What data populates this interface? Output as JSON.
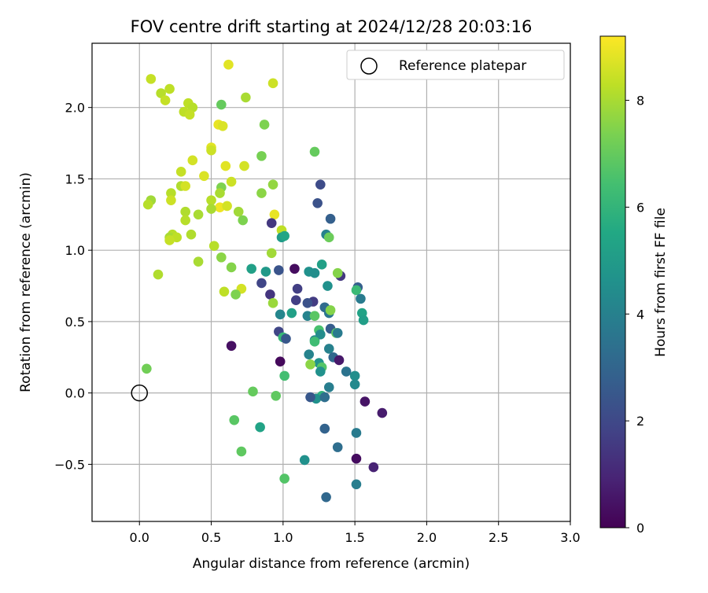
{
  "chart_data": {
    "type": "scatter",
    "title": "FOV centre drift starting at 2024/12/28 20:03:16",
    "xlabel": "Angular distance from reference (arcmin)",
    "ylabel": "Rotation from reference (arcmin)",
    "xlim": [
      -0.33,
      3.0
    ],
    "ylim": [
      -0.9,
      2.45
    ],
    "xticks": [
      0.0,
      0.5,
      1.0,
      1.5,
      2.0,
      2.5,
      3.0
    ],
    "xtick_labels": [
      "0.0",
      "0.5",
      "1.0",
      "1.5",
      "2.0",
      "2.5",
      "3.0"
    ],
    "yticks": [
      -0.5,
      0.0,
      0.5,
      1.0,
      1.5,
      2.0
    ],
    "ytick_labels": [
      "−0.5",
      "0.0",
      "0.5",
      "1.0",
      "1.5",
      "2.0"
    ],
    "grid": true,
    "legend": {
      "placement": "top-right",
      "entries": [
        "Reference platepar"
      ]
    },
    "colormap": "viridis",
    "colorbar": {
      "label": "Hours from first FF file",
      "range": [
        0,
        9.2
      ],
      "ticks": [
        0,
        2,
        4,
        6,
        8
      ],
      "tick_labels": [
        "0",
        "2",
        "4",
        "6",
        "8"
      ]
    },
    "reference_point": {
      "x": 0.0,
      "y": 0.0
    },
    "points": [
      {
        "x": 0.08,
        "y": 2.2,
        "hours": 8.4
      },
      {
        "x": 0.62,
        "y": 2.3,
        "hours": 8.8
      },
      {
        "x": 0.15,
        "y": 2.1,
        "hours": 8.2
      },
      {
        "x": 0.21,
        "y": 2.13,
        "hours": 8.3
      },
      {
        "x": 0.18,
        "y": 2.05,
        "hours": 8.4
      },
      {
        "x": 0.93,
        "y": 2.17,
        "hours": 8.5
      },
      {
        "x": 0.74,
        "y": 2.07,
        "hours": 8.0
      },
      {
        "x": 0.34,
        "y": 2.03,
        "hours": 8.3
      },
      {
        "x": 0.37,
        "y": 2.0,
        "hours": 8.2
      },
      {
        "x": 0.31,
        "y": 1.97,
        "hours": 8.3
      },
      {
        "x": 0.35,
        "y": 1.95,
        "hours": 8.4
      },
      {
        "x": 0.57,
        "y": 2.02,
        "hours": 7.0
      },
      {
        "x": 0.55,
        "y": 1.88,
        "hours": 8.9
      },
      {
        "x": 0.58,
        "y": 1.87,
        "hours": 8.7
      },
      {
        "x": 0.87,
        "y": 1.88,
        "hours": 7.4
      },
      {
        "x": 0.5,
        "y": 1.72,
        "hours": 8.8
      },
      {
        "x": 0.5,
        "y": 1.7,
        "hours": 8.5
      },
      {
        "x": 1.22,
        "y": 1.69,
        "hours": 7.0
      },
      {
        "x": 0.85,
        "y": 1.66,
        "hours": 7.3
      },
      {
        "x": 0.37,
        "y": 1.63,
        "hours": 8.6
      },
      {
        "x": 0.6,
        "y": 1.59,
        "hours": 8.8
      },
      {
        "x": 0.73,
        "y": 1.59,
        "hours": 8.6
      },
      {
        "x": 0.29,
        "y": 1.55,
        "hours": 8.4
      },
      {
        "x": 0.45,
        "y": 1.52,
        "hours": 8.7
      },
      {
        "x": 0.64,
        "y": 1.48,
        "hours": 8.5
      },
      {
        "x": 0.93,
        "y": 1.46,
        "hours": 7.7
      },
      {
        "x": 1.26,
        "y": 1.46,
        "hours": 2.1
      },
      {
        "x": 0.29,
        "y": 1.45,
        "hours": 8.1
      },
      {
        "x": 0.32,
        "y": 1.45,
        "hours": 8.6
      },
      {
        "x": 0.57,
        "y": 1.44,
        "hours": 7.4
      },
      {
        "x": 0.22,
        "y": 1.4,
        "hours": 8.2
      },
      {
        "x": 0.56,
        "y": 1.4,
        "hours": 8.0
      },
      {
        "x": 0.85,
        "y": 1.4,
        "hours": 7.6
      },
      {
        "x": 0.08,
        "y": 1.35,
        "hours": 7.9
      },
      {
        "x": 0.22,
        "y": 1.35,
        "hours": 8.5
      },
      {
        "x": 0.5,
        "y": 1.35,
        "hours": 8.2
      },
      {
        "x": 0.06,
        "y": 1.32,
        "hours": 8.2
      },
      {
        "x": 0.56,
        "y": 1.3,
        "hours": 9.0
      },
      {
        "x": 0.61,
        "y": 1.31,
        "hours": 8.6
      },
      {
        "x": 0.5,
        "y": 1.29,
        "hours": 8.0
      },
      {
        "x": 1.24,
        "y": 1.33,
        "hours": 2.3
      },
      {
        "x": 0.69,
        "y": 1.27,
        "hours": 7.9
      },
      {
        "x": 0.32,
        "y": 1.27,
        "hours": 8.1
      },
      {
        "x": 0.41,
        "y": 1.25,
        "hours": 8.0
      },
      {
        "x": 0.94,
        "y": 1.25,
        "hours": 8.9
      },
      {
        "x": 1.33,
        "y": 1.22,
        "hours": 2.8
      },
      {
        "x": 0.32,
        "y": 1.21,
        "hours": 8.2
      },
      {
        "x": 0.72,
        "y": 1.21,
        "hours": 7.4
      },
      {
        "x": 0.92,
        "y": 1.19,
        "hours": 1.5
      },
      {
        "x": 0.99,
        "y": 1.14,
        "hours": 8.3
      },
      {
        "x": 0.23,
        "y": 1.11,
        "hours": 8.2
      },
      {
        "x": 0.36,
        "y": 1.11,
        "hours": 8.1
      },
      {
        "x": 1.3,
        "y": 1.11,
        "hours": 4.0
      },
      {
        "x": 1.32,
        "y": 1.09,
        "hours": 7.1
      },
      {
        "x": 0.21,
        "y": 1.09,
        "hours": 8.0
      },
      {
        "x": 0.26,
        "y": 1.09,
        "hours": 8.3
      },
      {
        "x": 0.99,
        "y": 1.09,
        "hours": 5.0
      },
      {
        "x": 1.01,
        "y": 1.1,
        "hours": 5.4
      },
      {
        "x": 0.21,
        "y": 1.07,
        "hours": 8.4
      },
      {
        "x": 0.52,
        "y": 1.03,
        "hours": 8.2
      },
      {
        "x": 0.92,
        "y": 0.98,
        "hours": 7.9
      },
      {
        "x": 0.57,
        "y": 0.95,
        "hours": 7.6
      },
      {
        "x": 0.41,
        "y": 0.92,
        "hours": 8.0
      },
      {
        "x": 1.27,
        "y": 0.9,
        "hours": 5.2
      },
      {
        "x": 0.64,
        "y": 0.88,
        "hours": 7.5
      },
      {
        "x": 0.78,
        "y": 0.87,
        "hours": 5.2
      },
      {
        "x": 1.08,
        "y": 0.87,
        "hours": 0.3
      },
      {
        "x": 0.88,
        "y": 0.85,
        "hours": 4.9
      },
      {
        "x": 0.97,
        "y": 0.86,
        "hours": 2.4
      },
      {
        "x": 1.18,
        "y": 0.85,
        "hours": 4.6
      },
      {
        "x": 1.22,
        "y": 0.84,
        "hours": 4.5
      },
      {
        "x": 1.4,
        "y": 0.82,
        "hours": 1.5
      },
      {
        "x": 1.38,
        "y": 0.84,
        "hours": 7.5
      },
      {
        "x": 0.13,
        "y": 0.83,
        "hours": 8.1
      },
      {
        "x": 0.85,
        "y": 0.77,
        "hours": 1.9
      },
      {
        "x": 1.31,
        "y": 0.75,
        "hours": 4.6
      },
      {
        "x": 1.52,
        "y": 0.74,
        "hours": 2.8
      },
      {
        "x": 1.51,
        "y": 0.72,
        "hours": 6.2
      },
      {
        "x": 1.1,
        "y": 0.73,
        "hours": 1.7
      },
      {
        "x": 0.59,
        "y": 0.71,
        "hours": 8.3
      },
      {
        "x": 0.71,
        "y": 0.73,
        "hours": 8.6
      },
      {
        "x": 0.67,
        "y": 0.69,
        "hours": 7.4
      },
      {
        "x": 0.91,
        "y": 0.69,
        "hours": 1.4
      },
      {
        "x": 1.54,
        "y": 0.66,
        "hours": 3.8
      },
      {
        "x": 1.09,
        "y": 0.65,
        "hours": 1.7
      },
      {
        "x": 1.21,
        "y": 0.64,
        "hours": 1.6
      },
      {
        "x": 1.17,
        "y": 0.63,
        "hours": 2.3
      },
      {
        "x": 0.93,
        "y": 0.63,
        "hours": 7.8
      },
      {
        "x": 1.29,
        "y": 0.6,
        "hours": 3.2
      },
      {
        "x": 1.32,
        "y": 0.56,
        "hours": 3.6
      },
      {
        "x": 1.33,
        "y": 0.58,
        "hours": 7.5
      },
      {
        "x": 1.55,
        "y": 0.56,
        "hours": 5.3
      },
      {
        "x": 0.98,
        "y": 0.55,
        "hours": 4.2
      },
      {
        "x": 1.06,
        "y": 0.56,
        "hours": 5.2
      },
      {
        "x": 1.17,
        "y": 0.54,
        "hours": 4.1
      },
      {
        "x": 1.22,
        "y": 0.54,
        "hours": 6.8
      },
      {
        "x": 1.56,
        "y": 0.51,
        "hours": 5.1
      },
      {
        "x": 1.33,
        "y": 0.45,
        "hours": 2.7
      },
      {
        "x": 0.97,
        "y": 0.43,
        "hours": 1.9
      },
      {
        "x": 1.25,
        "y": 0.44,
        "hours": 6.5
      },
      {
        "x": 1.26,
        "y": 0.41,
        "hours": 4.4
      },
      {
        "x": 1.37,
        "y": 0.42,
        "hours": 6.8
      },
      {
        "x": 1.38,
        "y": 0.42,
        "hours": 3.8
      },
      {
        "x": 1.0,
        "y": 0.39,
        "hours": 6.1
      },
      {
        "x": 1.02,
        "y": 0.38,
        "hours": 2.5
      },
      {
        "x": 1.22,
        "y": 0.37,
        "hours": 4.3
      },
      {
        "x": 1.22,
        "y": 0.36,
        "hours": 6.3
      },
      {
        "x": 0.64,
        "y": 0.33,
        "hours": 0.4
      },
      {
        "x": 1.32,
        "y": 0.31,
        "hours": 4.0
      },
      {
        "x": 1.18,
        "y": 0.27,
        "hours": 4.1
      },
      {
        "x": 1.35,
        "y": 0.25,
        "hours": 3.1
      },
      {
        "x": 1.39,
        "y": 0.23,
        "hours": 0.6
      },
      {
        "x": 0.98,
        "y": 0.22,
        "hours": 0.2
      },
      {
        "x": 1.25,
        "y": 0.21,
        "hours": 4.7
      },
      {
        "x": 1.19,
        "y": 0.2,
        "hours": 7.6
      },
      {
        "x": 1.27,
        "y": 0.18,
        "hours": 6.7
      },
      {
        "x": 1.26,
        "y": 0.15,
        "hours": 4.6
      },
      {
        "x": 1.44,
        "y": 0.15,
        "hours": 3.5
      },
      {
        "x": 0.05,
        "y": 0.17,
        "hours": 7.2
      },
      {
        "x": 1.01,
        "y": 0.12,
        "hours": 6.4
      },
      {
        "x": 1.5,
        "y": 0.12,
        "hours": 4.5
      },
      {
        "x": 1.5,
        "y": 0.06,
        "hours": 4.3
      },
      {
        "x": 1.32,
        "y": 0.04,
        "hours": 3.9
      },
      {
        "x": 0.79,
        "y": 0.01,
        "hours": 7.0
      },
      {
        "x": 0.95,
        "y": -0.02,
        "hours": 6.9
      },
      {
        "x": 1.27,
        "y": -0.02,
        "hours": 5.9
      },
      {
        "x": 1.23,
        "y": -0.04,
        "hours": 4.6
      },
      {
        "x": 1.19,
        "y": -0.03,
        "hours": 2.5
      },
      {
        "x": 1.29,
        "y": -0.03,
        "hours": 3.3
      },
      {
        "x": 1.57,
        "y": -0.06,
        "hours": 0.5
      },
      {
        "x": 1.69,
        "y": -0.14,
        "hours": 0.7
      },
      {
        "x": 0.66,
        "y": -0.19,
        "hours": 6.8
      },
      {
        "x": 0.84,
        "y": -0.24,
        "hours": 5.3
      },
      {
        "x": 1.29,
        "y": -0.25,
        "hours": 2.9
      },
      {
        "x": 1.51,
        "y": -0.28,
        "hours": 3.8
      },
      {
        "x": 1.38,
        "y": -0.38,
        "hours": 3.3
      },
      {
        "x": 0.71,
        "y": -0.41,
        "hours": 6.9
      },
      {
        "x": 1.15,
        "y": -0.47,
        "hours": 4.6
      },
      {
        "x": 1.51,
        "y": -0.46,
        "hours": 0.3
      },
      {
        "x": 1.63,
        "y": -0.52,
        "hours": 0.9
      },
      {
        "x": 1.01,
        "y": -0.6,
        "hours": 6.7
      },
      {
        "x": 1.51,
        "y": -0.64,
        "hours": 3.9
      },
      {
        "x": 1.3,
        "y": -0.73,
        "hours": 3.1
      }
    ]
  }
}
